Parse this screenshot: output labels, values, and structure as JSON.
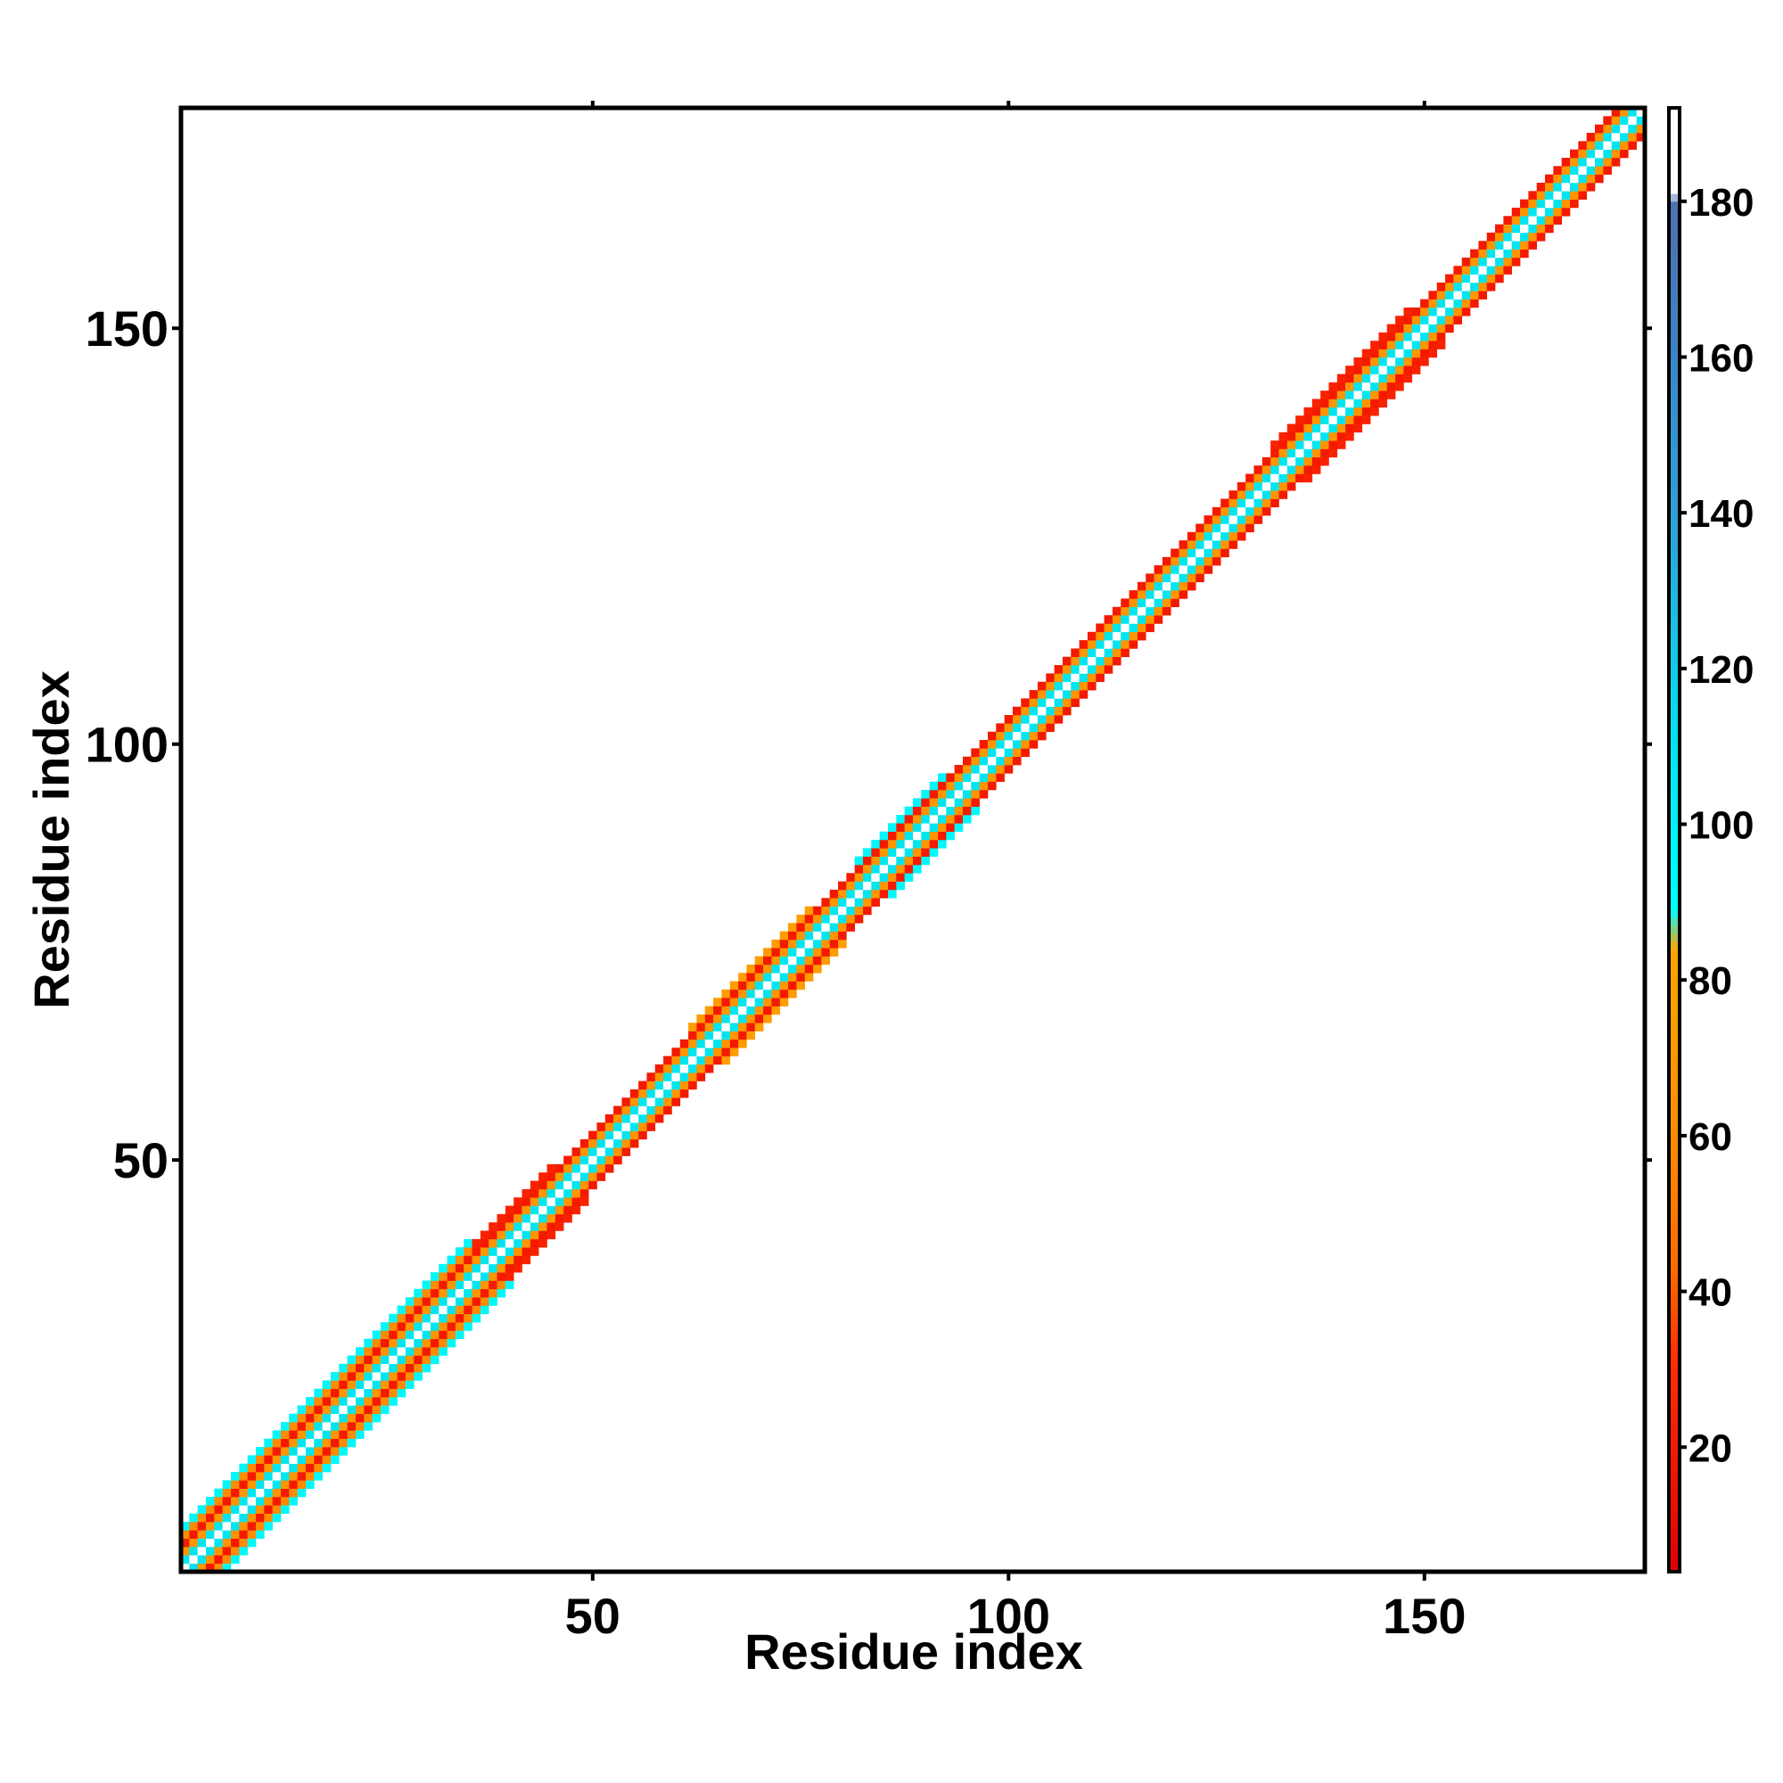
{
  "chart_data": {
    "type": "heatmap",
    "title": "",
    "xlabel": "Residue index",
    "ylabel": "Residue index",
    "xlim": [
      1,
      176
    ],
    "ylim": [
      1,
      176
    ],
    "x_ticks": [
      50,
      100,
      150
    ],
    "y_ticks": [
      50,
      100,
      150
    ],
    "colorbar": {
      "range": [
        4,
        192
      ],
      "ticks": [
        20,
        40,
        60,
        80,
        100,
        120,
        140,
        160,
        180
      ],
      "stops": [
        {
          "value": 4,
          "color": "#e00000"
        },
        {
          "value": 30,
          "color": "#ff2a00"
        },
        {
          "value": 43,
          "color": "#ff6a00"
        },
        {
          "value": 60,
          "color": "#ff8c00"
        },
        {
          "value": 84,
          "color": "#ffa500"
        },
        {
          "value": 89,
          "color": "#00ffff"
        },
        {
          "value": 110,
          "color": "#00e6f0"
        },
        {
          "value": 135,
          "color": "#29a9d6"
        },
        {
          "value": 160,
          "color": "#3b86c4"
        },
        {
          "value": 180,
          "color": "#4f6fb0"
        },
        {
          "value": 181,
          "color": "#ffffff"
        },
        {
          "value": 192,
          "color": "#ffffff"
        }
      ]
    },
    "band": {
      "description_values": "Symmetric banded contact map along the diagonal; cell value by offset |i-j|",
      "offset_values": [
        {
          "offset": 0,
          "value": 190
        },
        {
          "offset": 1,
          "value": 110
        },
        {
          "offset": 2,
          "value": 70
        },
        {
          "offset": 3,
          "value": 20
        }
      ],
      "wide_regions": [
        {
          "start": 1,
          "end": 38,
          "extra": [
            {
              "offset": 4,
              "value": 60
            },
            {
              "offset": 5,
              "value": 95
            }
          ]
        },
        {
          "start": 38,
          "end": 47,
          "extra": [
            {
              "offset": 4,
              "value": 25
            }
          ]
        },
        {
          "start": 64,
          "end": 78,
          "extra": [
            {
              "offset": 4,
              "value": 75
            }
          ]
        },
        {
          "start": 84,
          "end": 94,
          "extra": [
            {
              "offset": 4,
              "value": 95
            }
          ]
        },
        {
          "start": 134,
          "end": 150,
          "extra": [
            {
              "offset": 4,
              "value": 25
            }
          ]
        }
      ]
    }
  }
}
